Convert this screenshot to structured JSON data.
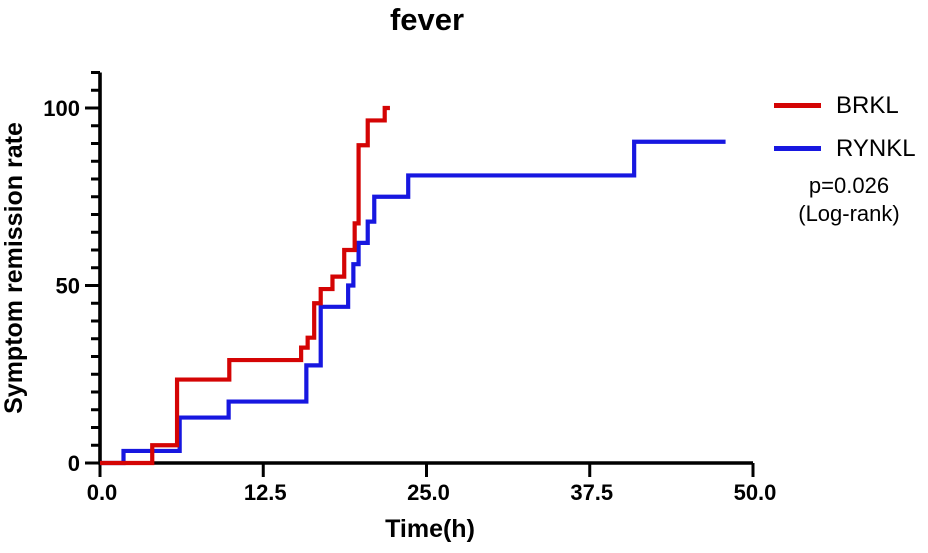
{
  "title": "fever",
  "axes": {
    "x": {
      "label": "Time(h)",
      "range": [
        0,
        50
      ],
      "ticks": [
        {
          "t": 0,
          "label": "0.0"
        },
        {
          "t": 12.5,
          "label": "12.5"
        },
        {
          "t": 25,
          "label": "25.0"
        },
        {
          "t": 37.5,
          "label": "37.5"
        },
        {
          "t": 50,
          "label": "50.0"
        }
      ]
    },
    "y": {
      "label": "Symptom remission rate",
      "range": [
        0,
        100
      ],
      "axis_max": 110,
      "minor_step": 5,
      "ticks": [
        {
          "v": 0,
          "label": "0"
        },
        {
          "v": 50,
          "label": "50"
        },
        {
          "v": 100,
          "label": "100"
        }
      ]
    }
  },
  "legend": {
    "items": [
      {
        "label": "BRKL",
        "color": "#d40404"
      },
      {
        "label": "RYNKL",
        "color": "#1717e0"
      }
    ],
    "pvalue": "p=0.026",
    "test": "(Log-rank)"
  },
  "chart_data": {
    "type": "line",
    "subtype": "kaplan-meier-step",
    "title": "fever",
    "xlabel": "Time(h)",
    "ylabel": "Symptom remission rate",
    "xlim": [
      0,
      50
    ],
    "ylim": [
      0,
      110
    ],
    "grid": false,
    "legend_position": "right",
    "annotation": "p=0.026 (Log-rank)",
    "series": [
      {
        "name": "BRKL",
        "color": "#d40404",
        "start": [
          0,
          0
        ],
        "steps": [
          [
            4.0,
            5.0
          ],
          [
            5.9,
            23.5
          ],
          [
            9.9,
            29.0
          ],
          [
            15.4,
            32.5
          ],
          [
            15.9,
            35.3
          ],
          [
            16.4,
            45.0
          ],
          [
            16.9,
            49.0
          ],
          [
            17.8,
            52.5
          ],
          [
            18.7,
            60.0
          ],
          [
            19.5,
            67.5
          ],
          [
            19.8,
            89.5
          ],
          [
            20.5,
            96.5
          ],
          [
            21.8,
            100.0
          ]
        ],
        "end_t": 22.2
      },
      {
        "name": "RYNKL",
        "color": "#1717e0",
        "start": [
          0,
          0
        ],
        "steps": [
          [
            1.8,
            3.4
          ],
          [
            6.1,
            12.8
          ],
          [
            9.85,
            17.3
          ],
          [
            15.8,
            27.5
          ],
          [
            16.9,
            44.0
          ],
          [
            19.0,
            50.0
          ],
          [
            19.4,
            56.0
          ],
          [
            19.8,
            62.0
          ],
          [
            20.5,
            68.0
          ],
          [
            21.0,
            75.0
          ],
          [
            23.6,
            81.0
          ],
          [
            40.9,
            90.5
          ]
        ],
        "end_t": 47.9
      }
    ]
  }
}
